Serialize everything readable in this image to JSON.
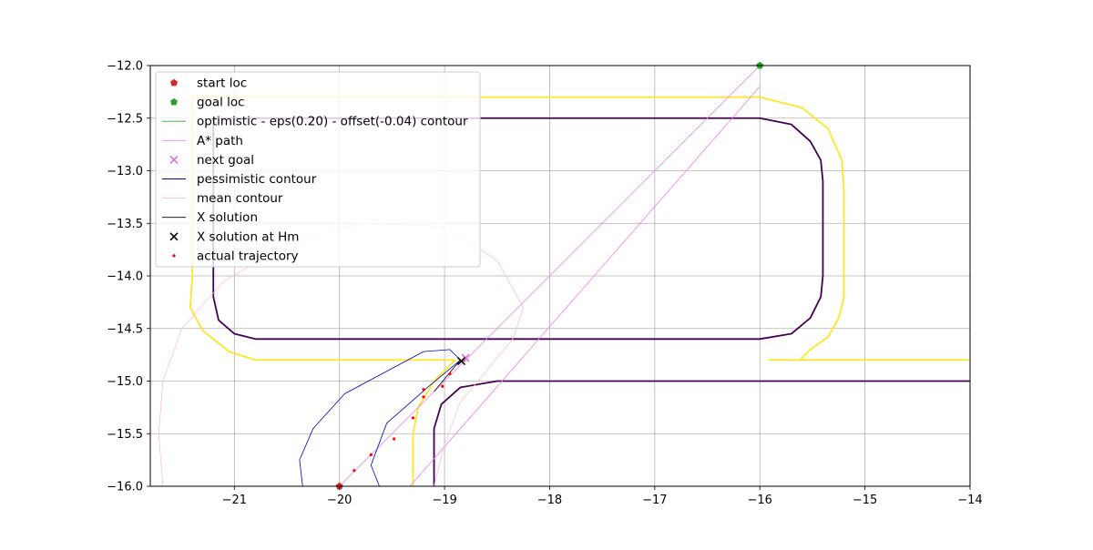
{
  "chart_data": {
    "type": "line",
    "title": "",
    "xlabel": "",
    "ylabel": "",
    "xlim": [
      -21.8,
      -14.0
    ],
    "ylim": [
      -16.0,
      -12.0
    ],
    "grid": true,
    "legend_location": "upper-left",
    "x_ticks": [
      -21,
      -20,
      -19,
      -18,
      -17,
      -16,
      -15,
      -14
    ],
    "x_tick_labels": [
      "−21",
      "−20",
      "−19",
      "−18",
      "−17",
      "−16",
      "−15",
      "−14"
    ],
    "y_ticks": [
      -12.0,
      -12.5,
      -13.0,
      -13.5,
      -14.0,
      -14.5,
      -15.0,
      -15.5,
      -16.0
    ],
    "y_tick_labels": [
      "−12.0",
      "−12.5",
      "−13.0",
      "−13.5",
      "−14.0",
      "−14.5",
      "−15.0",
      "−15.5",
      "−16.0"
    ],
    "legend": [
      {
        "label": "start loc",
        "marker": "pentagon",
        "color": "#d62728"
      },
      {
        "label": "goal loc",
        "marker": "pentagon",
        "color": "#2ca02c"
      },
      {
        "label": "optimistic - eps(0.20) - offset(-0.04) contour",
        "marker": "line",
        "color": "#2ca02c"
      },
      {
        "label": "A* path",
        "marker": "line",
        "color": "#ee82ee"
      },
      {
        "label": "next goal",
        "marker": "x",
        "color": "#da70d6"
      },
      {
        "label": "pessimistic contour",
        "marker": "line",
        "color": "#0000cd"
      },
      {
        "label": "mean contour",
        "marker": "line",
        "color": "#ffc0cb"
      },
      {
        "label": "X solution",
        "marker": "line",
        "color": "#000000"
      },
      {
        "label": "X solution at Hm",
        "marker": "x",
        "color": "#000000"
      },
      {
        "label": "actual trajectory",
        "marker": "dot",
        "color": "#ff0000"
      }
    ],
    "series": [
      {
        "kind": "line",
        "color": "#fde725",
        "width": 1.8,
        "points": [
          [
            -21.4,
            -14.0
          ],
          [
            -21.42,
            -14.3
          ],
          [
            -21.3,
            -14.52
          ],
          [
            -21.05,
            -14.72
          ],
          [
            -20.8,
            -14.8
          ],
          [
            -18.9,
            -14.8
          ],
          [
            -18.95,
            -14.85
          ],
          [
            -19.1,
            -15.0
          ],
          [
            -19.25,
            -15.25
          ],
          [
            -19.3,
            -15.5
          ],
          [
            -19.3,
            -16.0
          ]
        ]
      },
      {
        "kind": "line",
        "color": "#fde725",
        "width": 1.8,
        "points": [
          [
            -21.4,
            -14.0
          ],
          [
            -21.4,
            -12.3
          ],
          [
            -16.0,
            -12.3
          ],
          [
            -15.6,
            -12.4
          ],
          [
            -15.35,
            -12.6
          ],
          [
            -15.22,
            -12.9
          ],
          [
            -15.2,
            -13.2
          ],
          [
            -15.2,
            -14.2
          ],
          [
            -15.25,
            -14.4
          ],
          [
            -15.35,
            -14.58
          ],
          [
            -15.52,
            -14.7
          ],
          [
            -15.62,
            -14.8
          ],
          [
            -15.7,
            -14.8
          ]
        ]
      },
      {
        "kind": "line",
        "color": "#fde725",
        "width": 1.8,
        "points": [
          [
            -15.92,
            -14.8
          ],
          [
            -14.0,
            -14.8
          ]
        ]
      },
      {
        "kind": "line",
        "color": "#440154",
        "width": 1.8,
        "points": [
          [
            -21.2,
            -12.5
          ],
          [
            -16.0,
            -12.5
          ],
          [
            -15.7,
            -12.56
          ],
          [
            -15.52,
            -12.72
          ],
          [
            -15.42,
            -12.9
          ],
          [
            -15.4,
            -13.1
          ],
          [
            -15.4,
            -14.0
          ],
          [
            -15.42,
            -14.2
          ],
          [
            -15.52,
            -14.4
          ],
          [
            -15.7,
            -14.55
          ],
          [
            -16.0,
            -14.6
          ],
          [
            -20.8,
            -14.6
          ],
          [
            -21.0,
            -14.55
          ],
          [
            -21.15,
            -14.42
          ],
          [
            -21.2,
            -14.2
          ],
          [
            -21.2,
            -12.5
          ]
        ]
      },
      {
        "kind": "line",
        "color": "#440154",
        "width": 1.8,
        "points": [
          [
            -19.1,
            -16.0
          ],
          [
            -19.1,
            -15.45
          ],
          [
            -19.03,
            -15.22
          ],
          [
            -18.85,
            -15.06
          ],
          [
            -18.5,
            -15.0
          ],
          [
            -14.0,
            -15.0
          ]
        ]
      },
      {
        "kind": "line",
        "color": "#ee82ee",
        "width": 0.8,
        "points": [
          [
            -20.0,
            -16.0
          ],
          [
            -16.0,
            -12.0
          ]
        ]
      },
      {
        "kind": "line",
        "color": "#ee82ee",
        "width": 0.8,
        "points": [
          [
            -19.33,
            -16.0
          ],
          [
            -16.0,
            -12.2
          ]
        ]
      },
      {
        "kind": "line",
        "color": "#0000cd",
        "width": 0.8,
        "points": [
          [
            -19.62,
            -16.0
          ],
          [
            -19.7,
            -15.8
          ],
          [
            -19.55,
            -15.4
          ],
          [
            -19.15,
            -15.05
          ],
          [
            -18.85,
            -14.8
          ],
          [
            -18.95,
            -14.7
          ],
          [
            -19.2,
            -14.72
          ],
          [
            -19.5,
            -14.88
          ],
          [
            -19.95,
            -15.12
          ],
          [
            -20.25,
            -15.45
          ],
          [
            -20.38,
            -15.75
          ],
          [
            -20.35,
            -16.0
          ]
        ]
      },
      {
        "kind": "line",
        "color": "#ffc0cb",
        "width": 0.8,
        "points": [
          [
            -21.68,
            -16.0
          ],
          [
            -21.72,
            -15.5
          ],
          [
            -21.68,
            -15.0
          ],
          [
            -21.5,
            -14.5
          ],
          [
            -21.1,
            -14.05
          ],
          [
            -20.5,
            -13.7
          ],
          [
            -19.8,
            -13.5
          ],
          [
            -19.0,
            -13.53
          ],
          [
            -18.5,
            -13.85
          ],
          [
            -18.25,
            -14.3
          ],
          [
            -18.35,
            -14.6
          ],
          [
            -18.6,
            -14.9
          ],
          [
            -18.85,
            -15.2
          ],
          [
            -19.0,
            -15.6
          ],
          [
            -19.1,
            -16.0
          ]
        ]
      },
      {
        "kind": "line",
        "color": "#000000",
        "width": 0.8,
        "points": [
          [
            -19.1,
            -15.1
          ],
          [
            -18.85,
            -14.8
          ]
        ]
      },
      {
        "kind": "scatter",
        "marker": "dot",
        "color": "#ff0000",
        "points": [
          [
            -19.86,
            -15.85
          ],
          [
            -19.7,
            -15.7
          ],
          [
            -19.48,
            -15.55
          ],
          [
            -19.3,
            -15.35
          ],
          [
            -19.2,
            -15.15
          ],
          [
            -19.2,
            -15.08
          ],
          [
            -19.02,
            -15.05
          ],
          [
            -18.95,
            -14.93
          ],
          [
            -18.82,
            -14.8
          ]
        ]
      },
      {
        "kind": "scatter",
        "marker": "x",
        "color": "#da70d6",
        "points": [
          [
            -18.8,
            -14.78
          ]
        ]
      },
      {
        "kind": "scatter",
        "marker": "x",
        "color": "#000000",
        "points": [
          [
            -18.84,
            -14.81
          ]
        ]
      },
      {
        "kind": "scatter",
        "marker": "pentagon",
        "color": "#d62728",
        "points": [
          [
            -20.0,
            -16.0
          ]
        ]
      },
      {
        "kind": "scatter",
        "marker": "pentagon",
        "color": "#2ca02c",
        "points": [
          [
            -16.0,
            -12.0
          ]
        ]
      }
    ]
  }
}
